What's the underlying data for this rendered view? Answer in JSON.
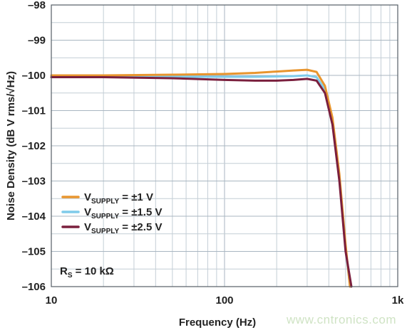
{
  "chart_data": {
    "type": "line",
    "title": "",
    "xlabel": "Frequency (Hz)",
    "ylabel": "Noise Density (dB V rms/√Hz)",
    "xscale": "log",
    "xlim": [
      10,
      1000
    ],
    "ylim": [
      -106,
      -98
    ],
    "x_ticks": [
      {
        "value": 10,
        "label": "10"
      },
      {
        "value": 100,
        "label": "100"
      },
      {
        "value": 1000,
        "label": "1k"
      }
    ],
    "y_ticks": [
      {
        "value": -98,
        "label": "–98"
      },
      {
        "value": -99,
        "label": "–99"
      },
      {
        "value": -100,
        "label": "–100"
      },
      {
        "value": -101,
        "label": "–101"
      },
      {
        "value": -102,
        "label": "–102"
      },
      {
        "value": -103,
        "label": "–103"
      },
      {
        "value": -104,
        "label": "–104"
      },
      {
        "value": -105,
        "label": "–105"
      },
      {
        "value": -106,
        "label": "–106"
      }
    ],
    "grid": true,
    "legend_position": "lower-left",
    "series": [
      {
        "name": "V SUPPLY = ±1 V",
        "name_main": "V",
        "name_sub": "SUPPLY",
        "name_rest": " = ±1 V",
        "color": "#E8952E",
        "x": [
          10,
          20,
          50,
          100,
          150,
          200,
          250,
          300,
          340,
          380,
          420,
          460,
          500,
          530
        ],
        "y": [
          -100.0,
          -100.0,
          -99.98,
          -99.96,
          -99.93,
          -99.89,
          -99.86,
          -99.84,
          -99.9,
          -100.3,
          -101.2,
          -102.8,
          -104.8,
          -106.0
        ]
      },
      {
        "name": "V SUPPLY = ±1.5 V",
        "name_main": "V",
        "name_sub": "SUPPLY",
        "name_rest": " = ±1.5 V",
        "color": "#7FCBEA",
        "x": [
          10,
          20,
          50,
          100,
          150,
          200,
          250,
          300,
          340,
          380,
          420,
          460,
          500,
          530
        ],
        "y": [
          -100.05,
          -100.05,
          -100.04,
          -100.04,
          -100.04,
          -100.03,
          -100.02,
          -100.0,
          -100.05,
          -100.4,
          -101.3,
          -102.9,
          -104.9,
          -106.0
        ]
      },
      {
        "name": "V SUPPLY = ±2.5 V",
        "name_main": "V",
        "name_sub": "SUPPLY",
        "name_rest": " = ±2.5 V",
        "color": "#7A1F3D",
        "x": [
          10,
          20,
          50,
          100,
          150,
          200,
          250,
          300,
          340,
          380,
          420,
          460,
          500,
          540
        ],
        "y": [
          -100.05,
          -100.05,
          -100.08,
          -100.13,
          -100.15,
          -100.15,
          -100.13,
          -100.1,
          -100.15,
          -100.5,
          -101.4,
          -103.0,
          -105.0,
          -106.0
        ]
      }
    ],
    "annotation": {
      "main": "R",
      "sub": "S",
      "rest": " = 10 kΩ"
    }
  },
  "watermark": "www.cntronics.com"
}
